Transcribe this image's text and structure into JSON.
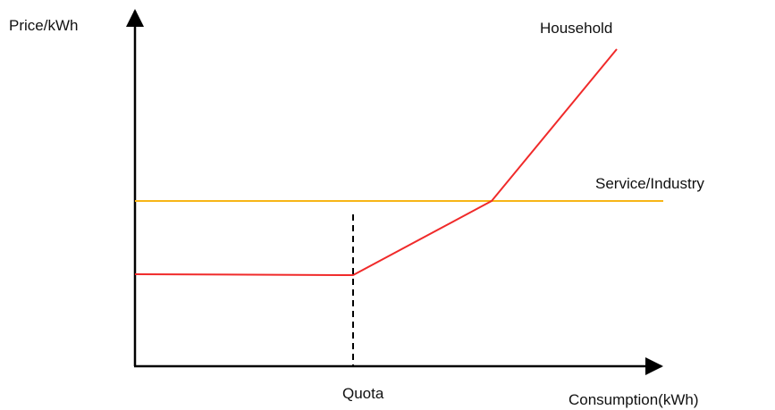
{
  "y_axis_label": "Price/kWh",
  "x_axis_label": "Consumption(kWh)",
  "quota_label": "Quota",
  "household_label": "Household",
  "service_label": "Service/Industry"
}
